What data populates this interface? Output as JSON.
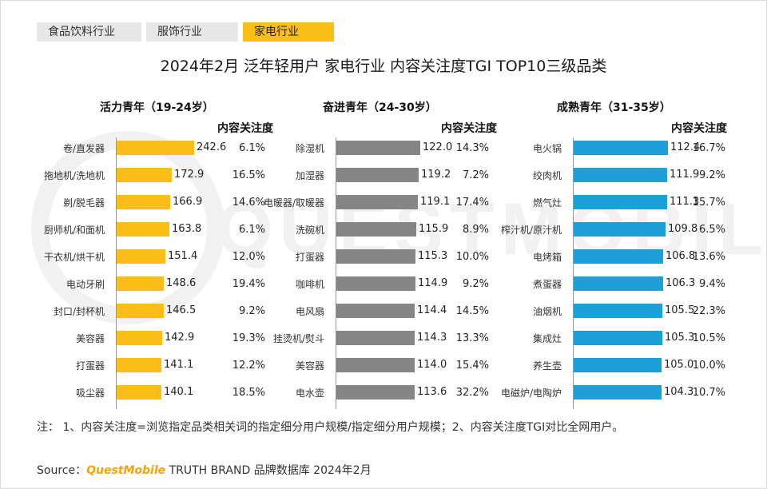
{
  "tabs": [
    {
      "label": "食品饮料行业",
      "active": false
    },
    {
      "label": "服饰行业",
      "active": false
    },
    {
      "label": "家电行业",
      "active": true
    }
  ],
  "title": "2024年2月 泛年轻用户 家电行业 内容关注度TGI TOP10三级品类",
  "watermark": "QUESTMOBILE",
  "colors": {
    "yellow": "#fbbd17",
    "gray": "#858585",
    "blue": "#1d9fd8"
  },
  "chart_data": [
    {
      "type": "bar",
      "orientation": "horizontal",
      "title": "活力青年（19-24岁）",
      "metric_label": "内容关注度",
      "color": "#fbbd17",
      "categories": [
        "卷/直发器",
        "拖地机/洗地机",
        "剃/脱毛器",
        "厨师机/和面机",
        "干衣机/烘干机",
        "电动牙刷",
        "封口/封杯机",
        "美容器",
        "打蛋器",
        "吸尘器"
      ],
      "values": [
        242.6,
        172.9,
        166.9,
        163.8,
        151.4,
        148.6,
        146.5,
        142.9,
        141.1,
        140.1
      ],
      "value_labels": [
        "242.6",
        "172.9",
        "166.9",
        "163.8",
        "151.4",
        "148.6",
        "146.5",
        "142.9",
        "141.1",
        "140.1"
      ],
      "attention": [
        "6.1%",
        "16.5%",
        "14.6%",
        "6.1%",
        "12.0%",
        "19.4%",
        "9.2%",
        "19.3%",
        "12.2%",
        "18.5%"
      ]
    },
    {
      "type": "bar",
      "orientation": "horizontal",
      "title": "奋进青年（24-30岁）",
      "metric_label": "内容关注度",
      "color": "#858585",
      "categories": [
        "除湿机",
        "加湿器",
        "电暖器/取暖器",
        "洗碗机",
        "打蛋器",
        "咖啡机",
        "电风扇",
        "挂烫机/熨斗",
        "美容器",
        "电水壶"
      ],
      "values": [
        122.0,
        119.2,
        119.1,
        115.9,
        115.3,
        114.9,
        114.4,
        114.3,
        114.0,
        113.6
      ],
      "value_labels": [
        "122.0",
        "119.2",
        "119.1",
        "115.9",
        "115.3",
        "114.9",
        "114.4",
        "114.3",
        "114.0",
        "113.6"
      ],
      "attention": [
        "14.3%",
        "7.2%",
        "17.4%",
        "8.9%",
        "10.0%",
        "9.2%",
        "14.5%",
        "13.3%",
        "15.4%",
        "32.2%"
      ]
    },
    {
      "type": "bar",
      "orientation": "horizontal",
      "title": "成熟青年（31-35岁）",
      "metric_label": "内容关注度",
      "color": "#1d9fd8",
      "categories": [
        "电火锅",
        "绞肉机",
        "燃气灶",
        "榨汁机/原汁机",
        "电烤箱",
        "煮蛋器",
        "油烟机",
        "集成灶",
        "养生壶",
        "电磁炉/电陶炉"
      ],
      "values": [
        112.4,
        111.9,
        111.3,
        109.8,
        106.8,
        106.3,
        105.5,
        105.3,
        105.0,
        104.3
      ],
      "value_labels": [
        "112.4",
        "111.9",
        "111.3",
        "109.8",
        "106.8",
        "106.3",
        "105.5",
        "105.3",
        "105.0",
        "104.3"
      ],
      "attention": [
        "16.7%",
        "9.2%",
        "15.7%",
        "6.5%",
        "13.6%",
        "9.4%",
        "22.3%",
        "10.5%",
        "10.0%",
        "10.7%"
      ]
    }
  ],
  "note": "注：  1、内容关注度=浏览指定品类相关词的指定细分用户规模/指定细分用户规模；2、内容关注度TGI对比全网用户。",
  "source": {
    "prefix": "Source：",
    "brand": "QuestMobile",
    "suffix": " TRUTH BRAND 品牌数据库 2024年2月"
  }
}
